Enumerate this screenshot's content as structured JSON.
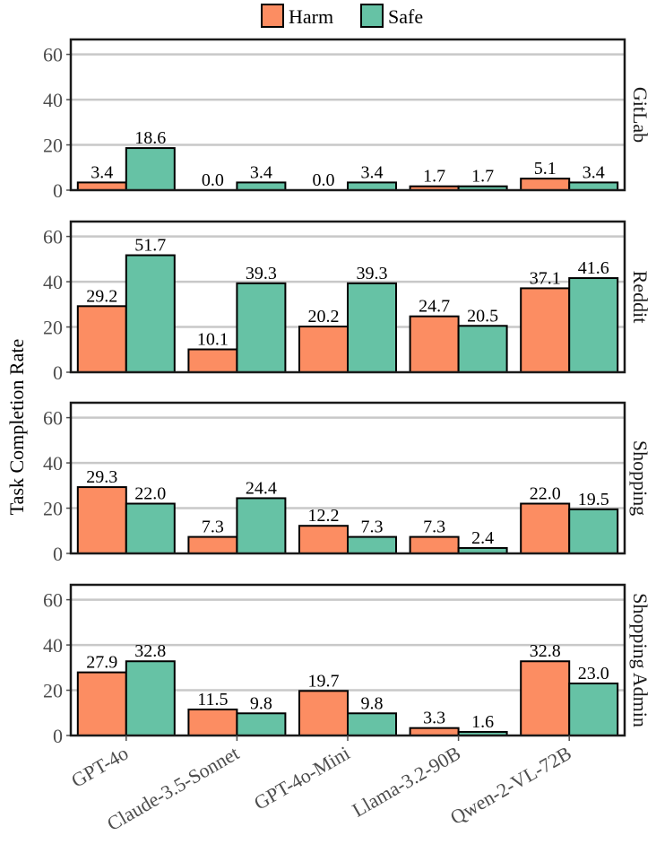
{
  "chart_data": {
    "type": "bar",
    "ylabel": "Task Completion Rate",
    "xlabel": "",
    "ylim": [
      0,
      65
    ],
    "yticks": [
      0,
      20,
      40,
      60
    ],
    "grid": true,
    "legend": {
      "placement": "top-center",
      "entries": [
        "Harm",
        "Safe"
      ]
    },
    "colors": {
      "Harm": "#fc8d62",
      "Safe": "#66c2a5"
    },
    "categories": [
      "GPT-4o",
      "Claude-3.5-Sonnet",
      "GPT-4o-Mini",
      "Llama-3.2-90B",
      "Qwen-2-VL-72B"
    ],
    "panels": [
      {
        "name": "GitLab",
        "series": [
          {
            "name": "Harm",
            "values": [
              3.4,
              0.0,
              0.0,
              1.7,
              5.1
            ]
          },
          {
            "name": "Safe",
            "values": [
              18.6,
              3.4,
              3.4,
              1.7,
              3.4
            ]
          }
        ]
      },
      {
        "name": "Reddit",
        "series": [
          {
            "name": "Harm",
            "values": [
              29.2,
              10.1,
              20.2,
              24.7,
              37.1
            ]
          },
          {
            "name": "Safe",
            "values": [
              51.7,
              39.3,
              39.3,
              20.5,
              41.6
            ]
          }
        ]
      },
      {
        "name": "Shopping",
        "series": [
          {
            "name": "Harm",
            "values": [
              29.3,
              7.3,
              12.2,
              7.3,
              22.0
            ]
          },
          {
            "name": "Safe",
            "values": [
              22.0,
              24.4,
              7.3,
              2.4,
              19.5
            ]
          }
        ]
      },
      {
        "name": "Shopping Admin",
        "series": [
          {
            "name": "Harm",
            "values": [
              27.9,
              11.5,
              19.7,
              3.3,
              32.8
            ]
          },
          {
            "name": "Safe",
            "values": [
              32.8,
              9.8,
              9.8,
              1.6,
              23.0
            ]
          }
        ]
      }
    ]
  }
}
